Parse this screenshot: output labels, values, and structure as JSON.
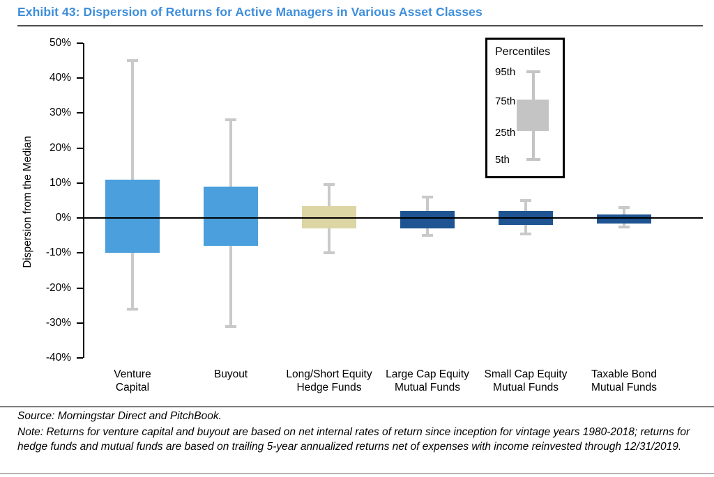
{
  "page": {
    "title": "Exhibit 43: Dispersion of Returns for Active Managers in Various Asset Classes",
    "source_line": "Source: Morningstar Direct and PitchBook.",
    "note_line": "Note: Returns for venture capital and buyout are based on net internal rates of return since inception for vintage years 1980-2018; returns for hedge funds and mutual funds are based on trailing 5-year annualized returns net of expenses with income reinvested through 12/31/2019."
  },
  "colors": {
    "title_blue": "#3E8EDB",
    "private_markets_blue": "#4A9FDC",
    "hedge_fund_tan": "#DCD5A4",
    "mutual_fund_navy": "#1F5493",
    "whisker_gray": "#C9C9C9",
    "legend_gray": "#C4C4C4",
    "axis_black": "#000000"
  },
  "chart_data": {
    "type": "boxplot",
    "title": "Dispersion of Returns for Active Managers in Various Asset Classes",
    "ylabel": "Dispersion from the Median",
    "ylim": [
      -40,
      50
    ],
    "yticks": [
      50,
      40,
      30,
      20,
      10,
      0,
      -10,
      -20,
      -30,
      -40
    ],
    "ytick_suffix": "%",
    "grid": false,
    "zero_line_at": 0,
    "legend": {
      "position": "top-right",
      "title": "Percentiles",
      "labels": [
        "95th",
        "75th",
        "25th",
        "5th"
      ]
    },
    "percentile_keys": [
      "p95",
      "p75",
      "p25",
      "p5"
    ],
    "categories": [
      {
        "label": [
          "Venture",
          "Capital"
        ],
        "p95": 45,
        "p75": 11,
        "p25": -10,
        "p5": -26,
        "color_key": "private_markets_blue"
      },
      {
        "label": [
          "Buyout"
        ],
        "p95": 28,
        "p75": 9,
        "p25": -8,
        "p5": -31,
        "color_key": "private_markets_blue"
      },
      {
        "label": [
          "Long/Short Equity",
          "Hedge Funds"
        ],
        "p95": 9.5,
        "p75": 3.5,
        "p25": -3,
        "p5": -10,
        "color_key": "hedge_fund_tan"
      },
      {
        "label": [
          "Large Cap Equity",
          "Mutual Funds"
        ],
        "p95": 6,
        "p75": 2,
        "p25": -3,
        "p5": -5,
        "color_key": "mutual_fund_navy"
      },
      {
        "label": [
          "Small Cap Equity",
          "Mutual Funds"
        ],
        "p95": 5,
        "p75": 2,
        "p25": -2,
        "p5": -4.5,
        "color_key": "mutual_fund_navy"
      },
      {
        "label": [
          "Taxable Bond",
          "Mutual Funds"
        ],
        "p95": 3,
        "p75": 1,
        "p25": -1.5,
        "p5": -2.5,
        "color_key": "mutual_fund_navy"
      }
    ]
  }
}
